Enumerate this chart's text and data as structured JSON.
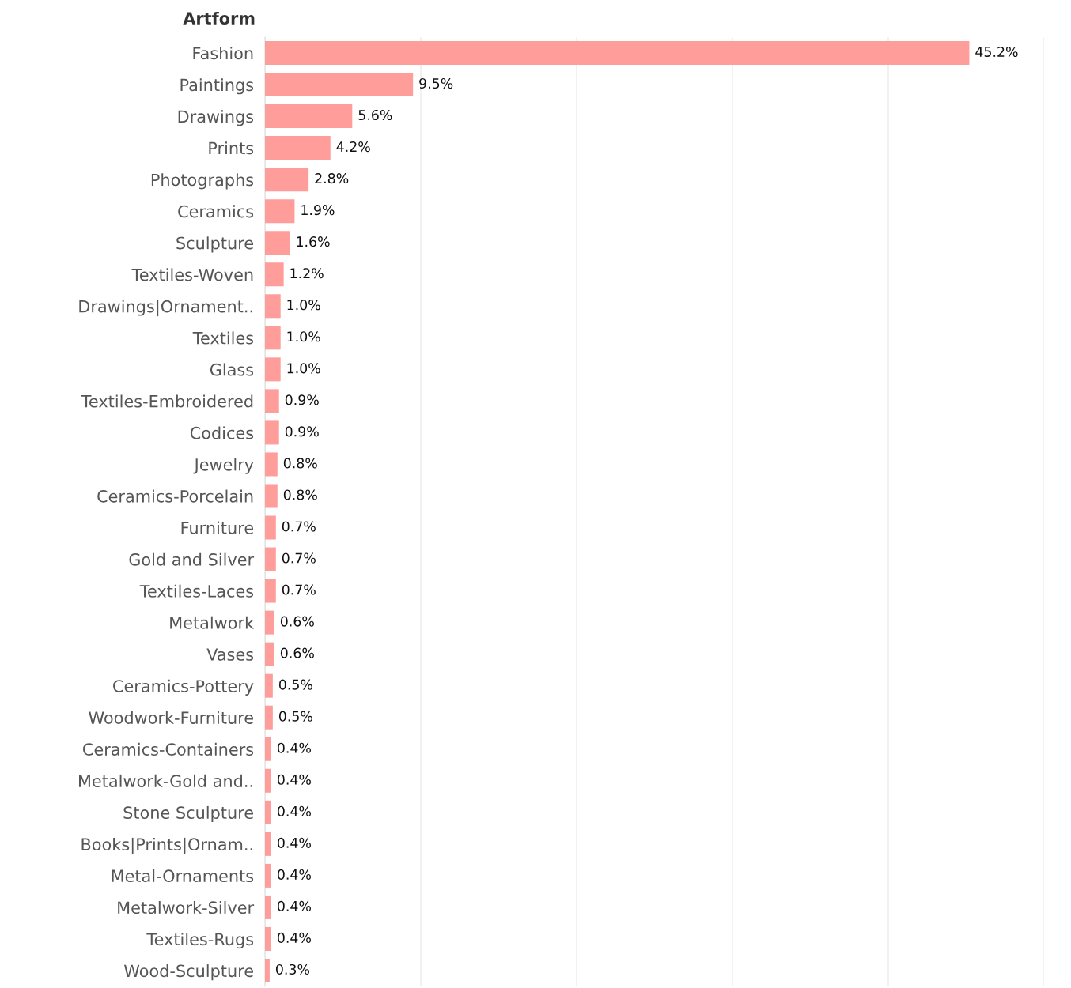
{
  "chart_data": {
    "type": "bar",
    "orientation": "horizontal",
    "ylabel": "Artform",
    "categories": [
      "Fashion",
      "Paintings",
      "Drawings",
      "Prints",
      "Photographs",
      "Ceramics",
      "Sculpture",
      "Textiles-Woven",
      "Drawings|Ornament..",
      "Textiles",
      "Glass",
      "Textiles-Embroidered",
      "Codices",
      "Jewelry",
      "Ceramics-Porcelain",
      "Furniture",
      "Gold and Silver",
      "Textiles-Laces",
      "Metalwork",
      "Vases",
      "Ceramics-Pottery",
      "Woodwork-Furniture",
      "Ceramics-Containers",
      "Metalwork-Gold and..",
      "Stone Sculpture",
      "Books|Prints|Ornam..",
      "Metal-Ornaments",
      "Metalwork-Silver",
      "Textiles-Rugs",
      "Wood-Sculpture"
    ],
    "values": [
      45.2,
      9.5,
      5.6,
      4.2,
      2.8,
      1.9,
      1.6,
      1.2,
      1.0,
      1.0,
      1.0,
      0.9,
      0.9,
      0.8,
      0.8,
      0.7,
      0.7,
      0.7,
      0.6,
      0.6,
      0.5,
      0.5,
      0.4,
      0.4,
      0.4,
      0.4,
      0.4,
      0.4,
      0.4,
      0.3
    ],
    "value_labels": [
      "45.2%",
      "9.5%",
      "5.6%",
      "4.2%",
      "2.8%",
      "1.9%",
      "1.6%",
      "1.2%",
      "1.0%",
      "1.0%",
      "1.0%",
      "0.9%",
      "0.9%",
      "0.8%",
      "0.8%",
      "0.7%",
      "0.7%",
      "0.7%",
      "0.6%",
      "0.6%",
      "0.5%",
      "0.5%",
      "0.4%",
      "0.4%",
      "0.4%",
      "0.4%",
      "0.4%",
      "0.4%",
      "0.4%",
      "0.3%"
    ],
    "color": "#ff9d9a",
    "xlim": [
      0,
      50
    ],
    "xticks": [
      {
        "value": 0,
        "label": null
      },
      {
        "value": 10,
        "label": null
      },
      {
        "value": 20,
        "label": null
      },
      {
        "value": 30,
        "label": null
      },
      {
        "value": 40,
        "label": null
      },
      {
        "value": 50,
        "label": null
      }
    ],
    "grid": "x",
    "tick_labels": "y"
  }
}
